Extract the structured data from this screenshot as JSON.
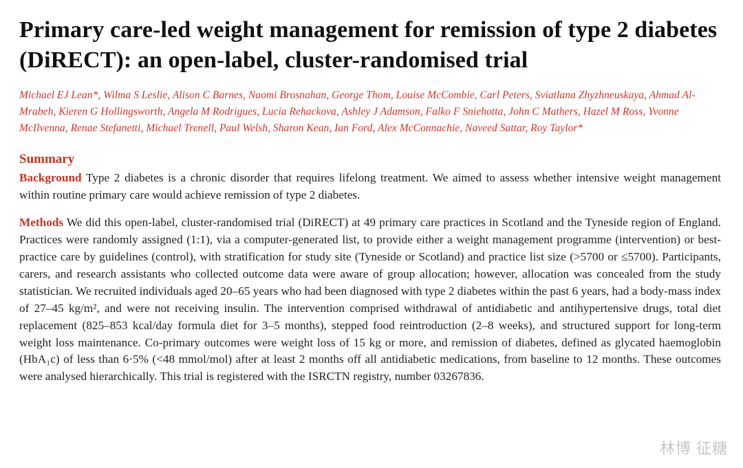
{
  "title": "Primary care-led weight management for remission of type 2 diabetes (DiRECT): an open-label, cluster-randomised trial",
  "authors": "Michael EJ Lean*, Wilma S Leslie, Alison C Barnes, Naomi Brosnahan, George Thom, Louise McCombie, Carl Peters, Sviatlana Zhyzhneuskaya, Ahmad Al-Mrabeh, Kieren G Hollingsworth, Angela M Rodrigues, Lucia Rehackova, Ashley J Adamson, Falko F Sniehotta, John C Mathers, Hazel M Ross, Yvonne McIlvenna, Renae Stefanetti, Michael Trenell, Paul Welsh, Sharon Kean, Ian Ford, Alex McConnachie, Naveed Sattar, Roy Taylor*",
  "summary_heading": "Summary",
  "background": {
    "label": "Background",
    "text": " Type 2 diabetes is a chronic disorder that requires lifelong treatment. We aimed to assess whether intensive weight management within routine primary care would achieve remission of type 2 diabetes."
  },
  "methods": {
    "label": "Methods",
    "text": " We did this open-label, cluster-randomised trial (DiRECT) at 49 primary care practices in Scotland and the Tyneside region of England. Practices were randomly assigned (1:1), via a computer-generated list, to provide either a weight management programme (intervention) or best-practice care by guidelines (control), with stratification for study site (Tyneside or Scotland) and practice list size (>5700 or ≤5700). Participants, carers, and research assistants who collected outcome data were aware of group allocation; however, allocation was concealed from the study statistician. We recruited individuals aged 20–65 years who had been diagnosed with type 2 diabetes within the past 6 years, had a body-mass index of 27–45 kg/m², and were not receiving insulin. The intervention comprised withdrawal of antidiabetic and antihypertensive drugs, total diet replacement (825–853 kcal/day formula diet for 3–5 months), stepped food reintroduction (2–8 weeks), and structured support for long-term weight loss maintenance. Co-primary outcomes were weight loss of 15 kg or more, and remission of diabetes, defined as glycated haemoglobin (HbA₁c) of less than 6·5% (<48 mmol/mol) after at least 2 months off all antidiabetic medications, from baseline to 12 months. These outcomes were analysed hierarchically. This trial is registered with the ISRCTN registry, number 03267836."
  },
  "colors": {
    "accent": "#c7321f",
    "author_color": "#d0352a",
    "text": "#222222",
    "background": "#ffffff"
  },
  "typography": {
    "title_fontsize": 34,
    "authors_fontsize": 15.5,
    "body_fontsize": 17.2,
    "heading_fontsize": 19
  },
  "watermark": "林博 征糖"
}
